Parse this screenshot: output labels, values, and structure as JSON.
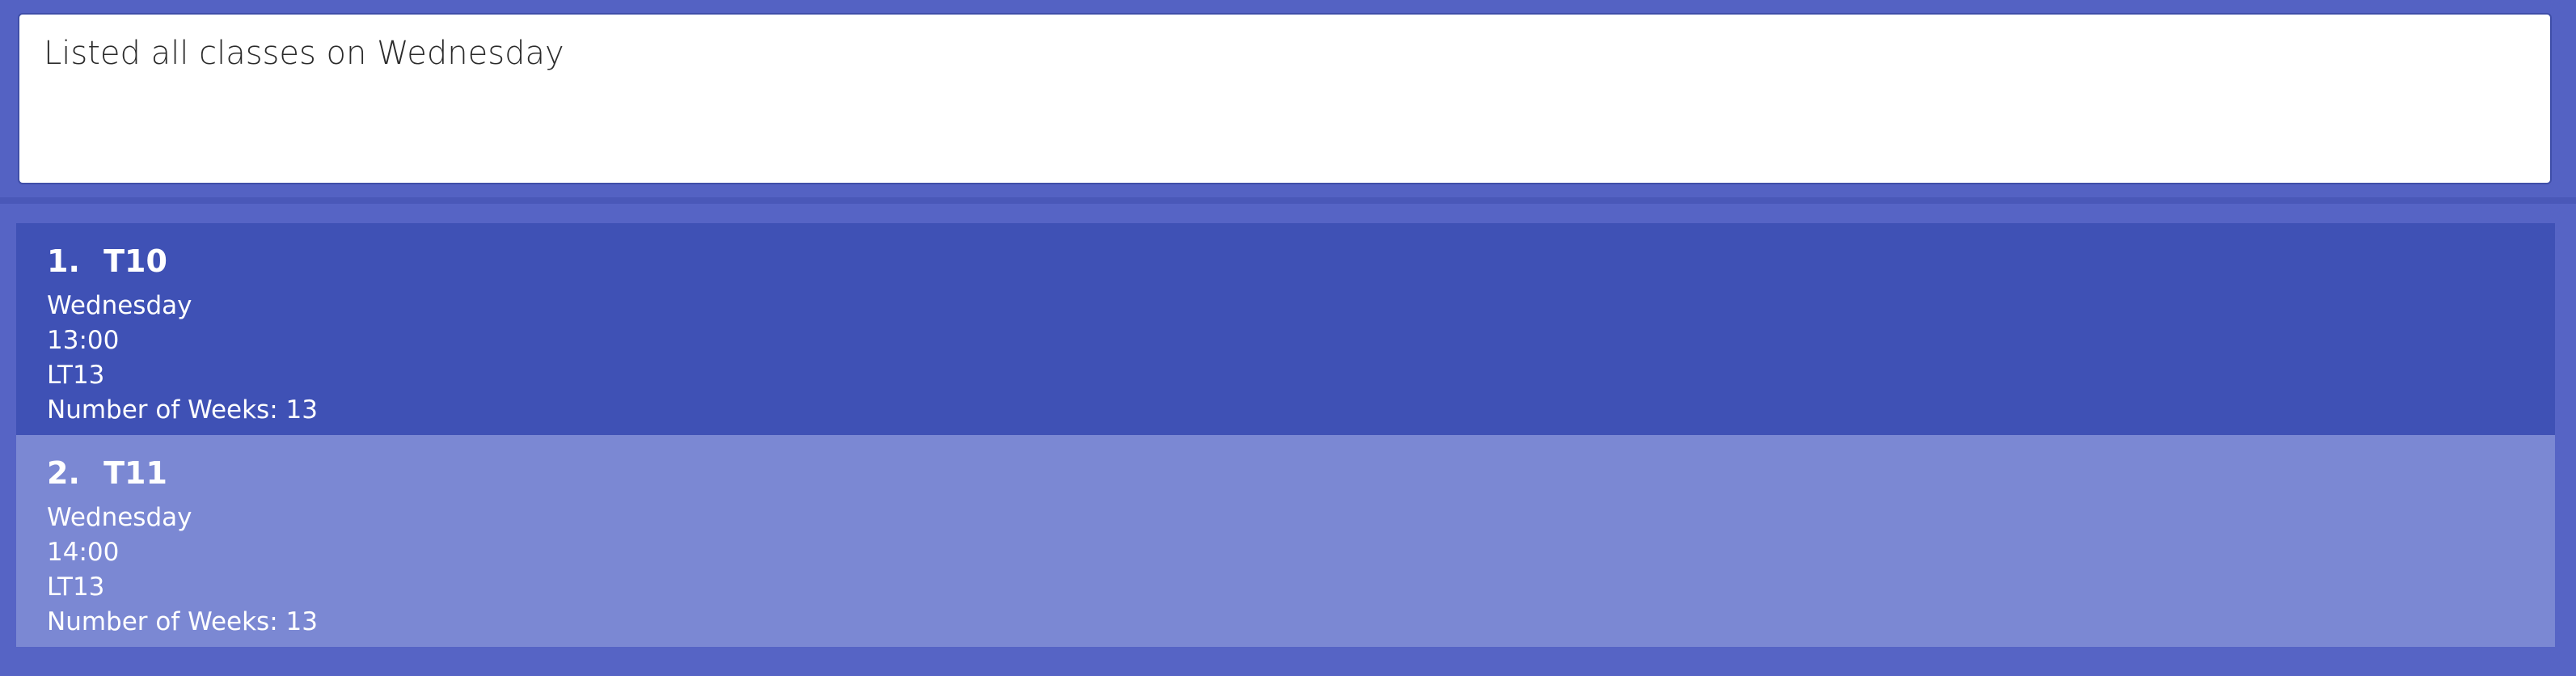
{
  "result": {
    "message": "Listed all classes on Wednesday"
  },
  "classes": [
    {
      "index": "1.",
      "name": "T10",
      "day": "Wednesday",
      "time": "13:00",
      "venue": "LT13",
      "weeks": "Number of Weeks: 13"
    },
    {
      "index": "2.",
      "name": "T11",
      "day": "Wednesday",
      "time": "14:00",
      "venue": "LT13",
      "weeks": "Number of Weeks: 13"
    }
  ],
  "colors": {
    "background": "#5462c3",
    "selected_card": "#3f51b5",
    "unselected_card": "#7b88d3",
    "result_box": "#ffffff"
  }
}
